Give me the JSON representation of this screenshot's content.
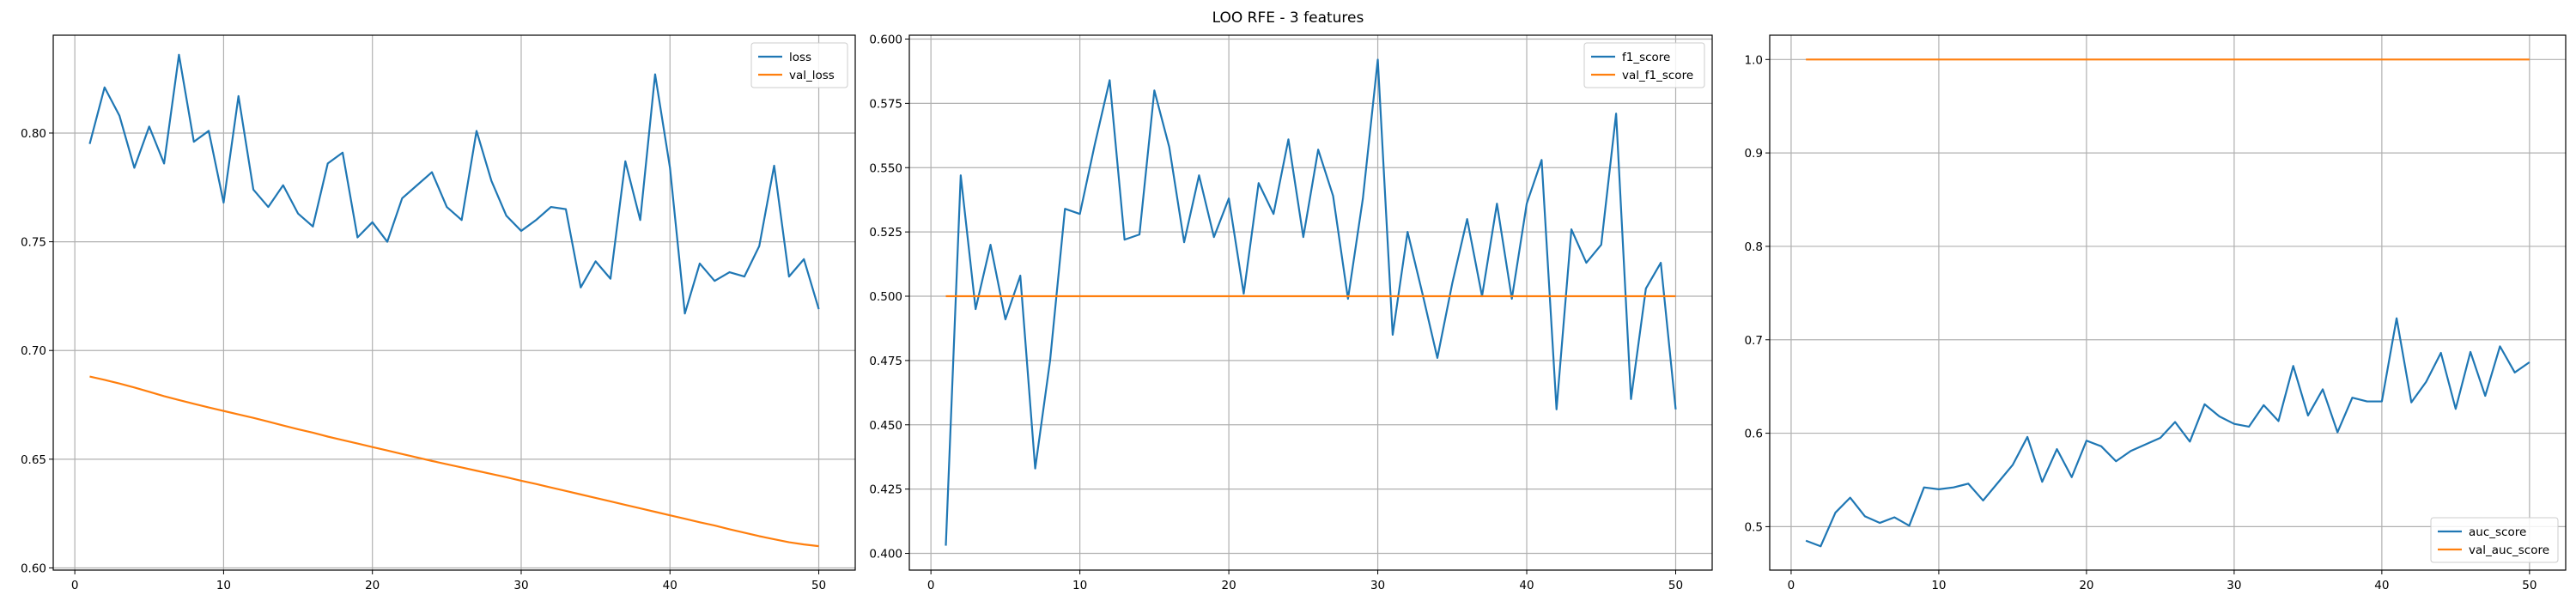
{
  "figure": {
    "title": "LOO RFE - 3 features"
  },
  "colors": {
    "series1": "#1f77b4",
    "series2": "#ff7f0e",
    "grid": "#b0b0b0",
    "frame": "#000000"
  },
  "chart_data": [
    {
      "type": "line",
      "x": [
        1,
        2,
        3,
        4,
        5,
        6,
        7,
        8,
        9,
        10,
        11,
        12,
        13,
        14,
        15,
        16,
        17,
        18,
        19,
        20,
        21,
        22,
        23,
        24,
        25,
        26,
        27,
        28,
        29,
        30,
        31,
        32,
        33,
        34,
        35,
        36,
        37,
        38,
        39,
        40,
        41,
        42,
        43,
        44,
        45,
        46,
        47,
        48,
        49,
        50
      ],
      "xlim": [
        -1.45,
        52.45
      ],
      "ylim": [
        0.599,
        0.845
      ],
      "xticks": [
        0,
        10,
        20,
        30,
        40,
        50
      ],
      "yticks": [
        0.6,
        0.65,
        0.7,
        0.75,
        0.8
      ],
      "ytick_labels": [
        "0.60",
        "0.65",
        "0.70",
        "0.75",
        "0.80"
      ],
      "legend_loc": "upper right",
      "grid": true,
      "series": [
        {
          "name": "loss",
          "color": "#1f77b4",
          "values": [
            0.795,
            0.821,
            0.808,
            0.784,
            0.803,
            0.786,
            0.836,
            0.796,
            0.801,
            0.768,
            0.817,
            0.774,
            0.766,
            0.776,
            0.763,
            0.757,
            0.786,
            0.791,
            0.752,
            0.759,
            0.75,
            0.77,
            0.776,
            0.782,
            0.766,
            0.76,
            0.801,
            0.778,
            0.762,
            0.755,
            0.76,
            0.766,
            0.765,
            0.729,
            0.741,
            0.733,
            0.787,
            0.76,
            0.827,
            0.784,
            0.717,
            0.74,
            0.732,
            0.736,
            0.734,
            0.748,
            0.785,
            0.734,
            0.742,
            0.719
          ]
        },
        {
          "name": "val_loss",
          "color": "#ff7f0e",
          "values": [
            0.688,
            0.6865,
            0.6848,
            0.683,
            0.681,
            0.679,
            0.6772,
            0.6755,
            0.6738,
            0.6722,
            0.6706,
            0.669,
            0.6673,
            0.6655,
            0.6638,
            0.6622,
            0.6604,
            0.6588,
            0.6572,
            0.6556,
            0.654,
            0.6524,
            0.6508,
            0.6492,
            0.6477,
            0.6462,
            0.6447,
            0.6432,
            0.6417,
            0.6401,
            0.6386,
            0.637,
            0.6354,
            0.6338,
            0.6322,
            0.6306,
            0.629,
            0.6274,
            0.6258,
            0.6242,
            0.6226,
            0.621,
            0.6195,
            0.6178,
            0.6162,
            0.6146,
            0.6132,
            0.6118,
            0.6108,
            0.61
          ]
        }
      ]
    },
    {
      "type": "line",
      "x": [
        1,
        2,
        3,
        4,
        5,
        6,
        7,
        8,
        9,
        10,
        11,
        12,
        13,
        14,
        15,
        16,
        17,
        18,
        19,
        20,
        21,
        22,
        23,
        24,
        25,
        26,
        27,
        28,
        29,
        30,
        31,
        32,
        33,
        34,
        35,
        36,
        37,
        38,
        39,
        40,
        41,
        42,
        43,
        44,
        45,
        46,
        47,
        48,
        49,
        50
      ],
      "xlim": [
        -1.45,
        52.45
      ],
      "ylim": [
        0.3935,
        0.6015
      ],
      "xticks": [
        0,
        10,
        20,
        30,
        40,
        50
      ],
      "yticks": [
        0.4,
        0.425,
        0.45,
        0.475,
        0.5,
        0.525,
        0.55,
        0.575,
        0.6
      ],
      "ytick_labels": [
        "0.400",
        "0.425",
        "0.450",
        "0.475",
        "0.500",
        "0.525",
        "0.550",
        "0.575",
        "0.600"
      ],
      "legend_loc": "upper right",
      "grid": true,
      "series": [
        {
          "name": "f1_score",
          "color": "#1f77b4",
          "values": [
            0.403,
            0.547,
            0.495,
            0.52,
            0.491,
            0.508,
            0.433,
            0.475,
            0.534,
            0.532,
            0.559,
            0.584,
            0.522,
            0.524,
            0.58,
            0.558,
            0.521,
            0.547,
            0.523,
            0.538,
            0.501,
            0.544,
            0.532,
            0.561,
            0.523,
            0.557,
            0.539,
            0.499,
            0.538,
            0.592,
            0.485,
            0.525,
            0.501,
            0.476,
            0.505,
            0.53,
            0.5,
            0.536,
            0.499,
            0.536,
            0.553,
            0.456,
            0.526,
            0.513,
            0.52,
            0.571,
            0.46,
            0.503,
            0.513,
            0.456
          ]
        },
        {
          "name": "val_f1_score",
          "color": "#ff7f0e",
          "values": [
            0.5,
            0.5,
            0.5,
            0.5,
            0.5,
            0.5,
            0.5,
            0.5,
            0.5,
            0.5,
            0.5,
            0.5,
            0.5,
            0.5,
            0.5,
            0.5,
            0.5,
            0.5,
            0.5,
            0.5,
            0.5,
            0.5,
            0.5,
            0.5,
            0.5,
            0.5,
            0.5,
            0.5,
            0.5,
            0.5,
            0.5,
            0.5,
            0.5,
            0.5,
            0.5,
            0.5,
            0.5,
            0.5,
            0.5,
            0.5,
            0.5,
            0.5,
            0.5,
            0.5,
            0.5,
            0.5,
            0.5,
            0.5,
            0.5,
            0.5
          ]
        }
      ]
    },
    {
      "type": "line",
      "x": [
        1,
        2,
        3,
        4,
        5,
        6,
        7,
        8,
        9,
        10,
        11,
        12,
        13,
        14,
        15,
        16,
        17,
        18,
        19,
        20,
        21,
        22,
        23,
        24,
        25,
        26,
        27,
        28,
        29,
        30,
        31,
        32,
        33,
        34,
        35,
        36,
        37,
        38,
        39,
        40,
        41,
        42,
        43,
        44,
        45,
        46,
        47,
        48,
        49,
        50
      ],
      "xlim": [
        -1.45,
        52.45
      ],
      "ylim": [
        0.4535,
        1.026
      ],
      "xticks": [
        0,
        10,
        20,
        30,
        40,
        50
      ],
      "yticks": [
        0.5,
        0.6,
        0.7,
        0.8,
        0.9,
        1.0
      ],
      "ytick_labels": [
        "0.5",
        "0.6",
        "0.7",
        "0.8",
        "0.9",
        "1.0"
      ],
      "legend_loc": "lower right",
      "grid": true,
      "series": [
        {
          "name": "auc_score",
          "color": "#1f77b4",
          "values": [
            0.485,
            0.479,
            0.515,
            0.531,
            0.511,
            0.504,
            0.51,
            0.501,
            0.542,
            0.54,
            0.542,
            0.546,
            0.528,
            0.547,
            0.566,
            0.596,
            0.548,
            0.583,
            0.553,
            0.592,
            0.586,
            0.57,
            0.581,
            0.588,
            0.595,
            0.612,
            0.591,
            0.631,
            0.618,
            0.61,
            0.607,
            0.63,
            0.613,
            0.672,
            0.619,
            0.647,
            0.601,
            0.638,
            0.634,
            0.634,
            0.723,
            0.633,
            0.655,
            0.686,
            0.626,
            0.687,
            0.64,
            0.693,
            0.665,
            0.676
          ]
        },
        {
          "name": "val_auc_score",
          "color": "#ff7f0e",
          "values": [
            1.0,
            1.0,
            1.0,
            1.0,
            1.0,
            1.0,
            1.0,
            1.0,
            1.0,
            1.0,
            1.0,
            1.0,
            1.0,
            1.0,
            1.0,
            1.0,
            1.0,
            1.0,
            1.0,
            1.0,
            1.0,
            1.0,
            1.0,
            1.0,
            1.0,
            1.0,
            1.0,
            1.0,
            1.0,
            1.0,
            1.0,
            1.0,
            1.0,
            1.0,
            1.0,
            1.0,
            1.0,
            1.0,
            1.0,
            1.0,
            1.0,
            1.0,
            1.0,
            1.0,
            1.0,
            1.0,
            1.0,
            1.0,
            1.0,
            1.0
          ]
        }
      ]
    }
  ]
}
